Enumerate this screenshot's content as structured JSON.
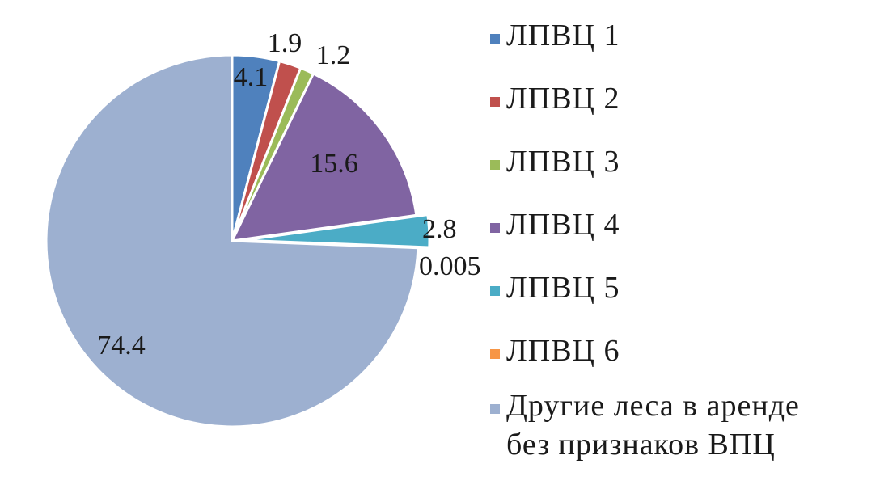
{
  "chart_data": {
    "type": "pie",
    "title": "",
    "start_angle_deg": 0,
    "direction": "clockwise",
    "legend_position": "right",
    "categories": [
      "ЛПВЦ 1",
      "ЛПВЦ 2",
      "ЛПВЦ 3",
      "ЛПВЦ 4",
      "ЛПВЦ 5",
      "ЛПВЦ 6",
      "Другие леса в аренде\nбез признаков ВПЦ"
    ],
    "values": [
      4.1,
      1.9,
      1.2,
      15.6,
      2.8,
      0.005,
      74.4
    ],
    "value_labels": [
      "4.1",
      "1.9",
      "1.2",
      "15.6",
      "2.8",
      "0.005",
      "74.4"
    ],
    "colors": [
      "#4F81BD",
      "#C0504D",
      "#9BBB59",
      "#8064A2",
      "#4BACC6",
      "#F79646",
      "#9DB0D0"
    ]
  }
}
